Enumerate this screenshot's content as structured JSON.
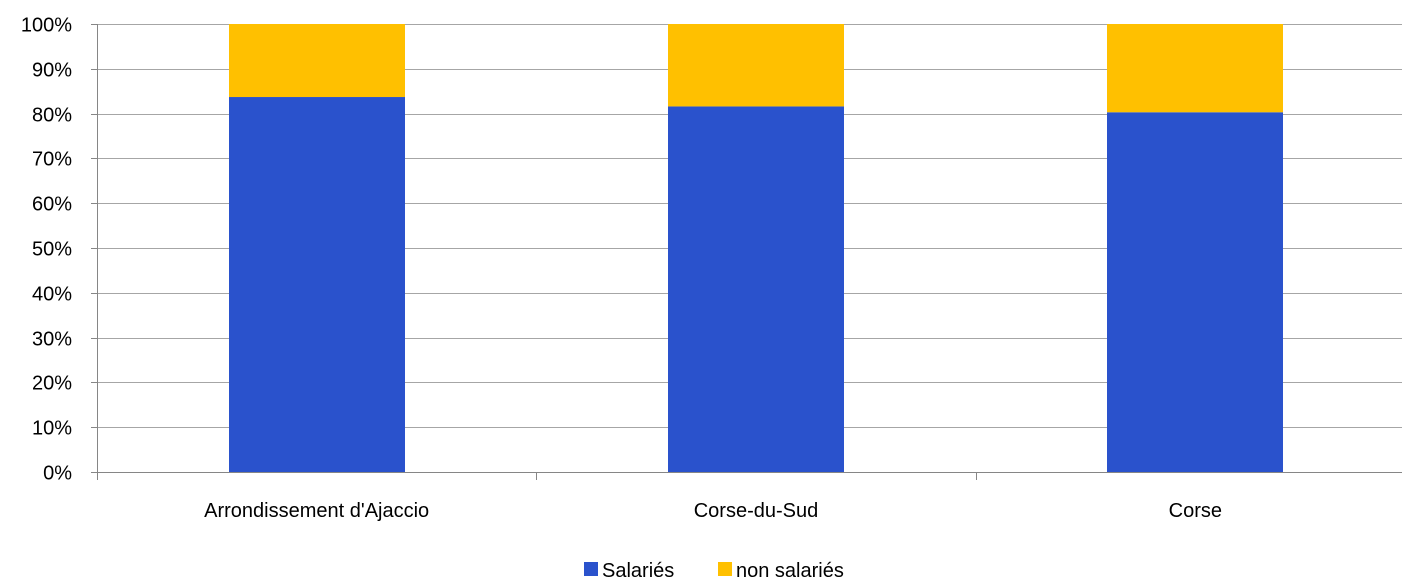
{
  "chart_data": {
    "type": "bar",
    "stacked": true,
    "stack_mode": "percent",
    "categories": [
      "Arrondissement d'Ajaccio",
      "Corse-du-Sud",
      "Corse"
    ],
    "series": [
      {
        "name": "Salariés",
        "color": "#2A52CC",
        "values": [
          83.7,
          81.6,
          80.3
        ]
      },
      {
        "name": "non salariés",
        "color": "#FFC000",
        "values": [
          16.3,
          18.4,
          19.7
        ]
      }
    ],
    "ylim": [
      0,
      100
    ],
    "yticks": [
      {
        "value": 0,
        "label": "0%"
      },
      {
        "value": 10,
        "label": "10%"
      },
      {
        "value": 20,
        "label": "20%"
      },
      {
        "value": 30,
        "label": "30%"
      },
      {
        "value": 40,
        "label": "40%"
      },
      {
        "value": 50,
        "label": "50%"
      },
      {
        "value": 60,
        "label": "60%"
      },
      {
        "value": 70,
        "label": "70%"
      },
      {
        "value": 80,
        "label": "80%"
      },
      {
        "value": 90,
        "label": "90%"
      },
      {
        "value": 100,
        "label": "100%"
      }
    ],
    "grid": true,
    "grid_color": "#A6A6A6",
    "axis_color": "#868686",
    "legend_position": "bottom"
  }
}
